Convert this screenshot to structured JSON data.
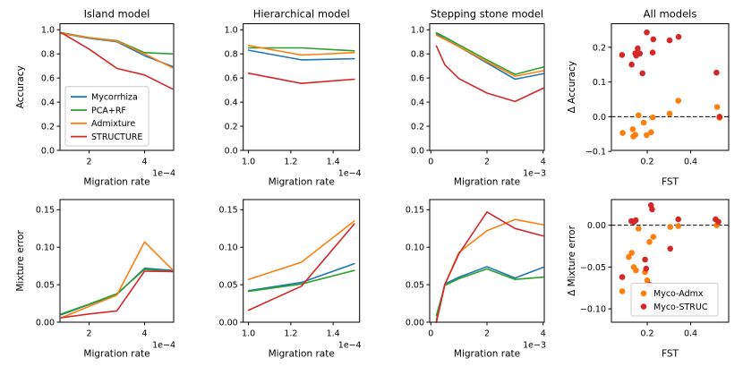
{
  "figure": {
    "background": "#ffffff",
    "row1_titles": [
      "Island model",
      "Hierarchical model",
      "Stepping stone model",
      "All models"
    ],
    "colors": {
      "mycorrhiza_blue": "#1f77b4",
      "pcarf_green": "#2ca02c",
      "admixture_orange": "#ff7f0e",
      "structure_red": "#d62728"
    }
  },
  "chart_data": [
    {
      "id": "island-accuracy",
      "type": "line",
      "title": "Island model",
      "xlabel": "Migration rate",
      "ylabel": "Accuracy",
      "x_offset_label": "1e−4",
      "xlim": [
        0.95,
        5.05
      ],
      "ylim": [
        0,
        1.05
      ],
      "xticks": {
        "values": [
          2,
          4
        ],
        "labels": [
          "2",
          "4"
        ]
      },
      "yticks": {
        "values": [
          0.0,
          0.2,
          0.4,
          0.6,
          0.8,
          1.0
        ],
        "labels": [
          "0.0",
          "0.2",
          "0.4",
          "0.6",
          "0.8",
          "1.0"
        ]
      },
      "x": [
        1,
        2,
        3,
        4,
        5
      ],
      "series": [
        {
          "name": "Mycorrhiza",
          "color": "#1f77b4",
          "y": [
            0.97,
            0.93,
            0.9,
            0.785,
            0.695
          ]
        },
        {
          "name": "PCA+RF",
          "color": "#2ca02c",
          "y": [
            0.975,
            0.935,
            0.91,
            0.81,
            0.8
          ]
        },
        {
          "name": "Admixture",
          "color": "#ff7f0e",
          "y": [
            0.97,
            0.935,
            0.905,
            0.8,
            0.685
          ]
        },
        {
          "name": "STRUCTURE",
          "color": "#d62728",
          "y": [
            0.975,
            0.84,
            0.68,
            0.625,
            0.51
          ]
        }
      ],
      "legend": {
        "show": true,
        "position": "lower-left",
        "marker": "line",
        "width": 93
      }
    },
    {
      "id": "hierarchical-accuracy",
      "type": "line",
      "title": "Hierarchical model",
      "xlabel": "Migration rate",
      "ylabel": "",
      "x_offset_label": "1e−4",
      "xlim": [
        0.975,
        1.525
      ],
      "ylim": [
        0,
        1.05
      ],
      "xticks": {
        "values": [
          1.0,
          1.2,
          1.4
        ],
        "labels": [
          "1.0",
          "1.2",
          "1.4"
        ]
      },
      "yticks": {
        "values": [
          0.0,
          0.2,
          0.4,
          0.6,
          0.8,
          1.0
        ],
        "labels": [
          "0.0",
          "0.2",
          "0.4",
          "0.6",
          "0.8",
          "1.0"
        ]
      },
      "x": [
        1.0,
        1.25,
        1.5
      ],
      "series": [
        {
          "name": "Mycorrhiza",
          "color": "#1f77b4",
          "y": [
            0.83,
            0.75,
            0.76
          ]
        },
        {
          "name": "PCA+RF",
          "color": "#2ca02c",
          "y": [
            0.85,
            0.85,
            0.825
          ]
        },
        {
          "name": "Admixture",
          "color": "#ff7f0e",
          "y": [
            0.87,
            0.79,
            0.81
          ]
        },
        {
          "name": "STRUCTURE",
          "color": "#d62728",
          "y": [
            0.64,
            0.555,
            0.59
          ]
        }
      ],
      "legend": {
        "show": false
      }
    },
    {
      "id": "stepping-stone-accuracy",
      "type": "line",
      "title": "Stepping stone model",
      "xlabel": "Migration rate",
      "ylabel": "",
      "x_offset_label": "1e−3",
      "xlim": [
        -0.04,
        4.04
      ],
      "ylim": [
        0,
        1.05
      ],
      "xticks": {
        "values": [
          0,
          2,
          4
        ],
        "labels": [
          "0",
          "2",
          "4"
        ]
      },
      "yticks": {
        "values": [
          0.0,
          0.2,
          0.4,
          0.6,
          0.8,
          1.0
        ],
        "labels": [
          "0.0",
          "0.2",
          "0.4",
          "0.6",
          "0.8",
          "1.0"
        ]
      },
      "x": [
        0.2,
        0.5,
        1,
        2,
        3,
        4
      ],
      "series": [
        {
          "name": "Mycorrhiza",
          "color": "#1f77b4",
          "y": [
            0.965,
            0.925,
            0.86,
            0.725,
            0.59,
            0.635
          ]
        },
        {
          "name": "PCA+RF",
          "color": "#2ca02c",
          "y": [
            0.975,
            0.94,
            0.875,
            0.75,
            0.63,
            0.69
          ]
        },
        {
          "name": "Admixture",
          "color": "#ff7f0e",
          "y": [
            0.955,
            0.92,
            0.86,
            0.735,
            0.615,
            0.66
          ]
        },
        {
          "name": "STRUCTURE",
          "color": "#d62728",
          "y": [
            0.865,
            0.71,
            0.595,
            0.475,
            0.405,
            0.515
          ]
        }
      ],
      "legend": {
        "show": false
      }
    },
    {
      "id": "all-models-delta-accuracy",
      "type": "scatter",
      "title": "All models",
      "xlabel": "FST",
      "ylabel": "Δ Accuracy",
      "x_offset_label": "",
      "xlim": [
        0.035,
        0.575
      ],
      "ylim": [
        -0.097,
        0.268
      ],
      "xticks": {
        "values": [
          0.2,
          0.4
        ],
        "labels": [
          "0.2",
          "0.4"
        ]
      },
      "yticks": {
        "values": [
          -0.1,
          0.0,
          0.1,
          0.2
        ],
        "labels": [
          "−0.1",
          "0.0",
          "0.1",
          "0.2"
        ]
      },
      "zero_line": true,
      "series": [
        {
          "name": "Myco-Admx",
          "color": "#ff7f0e",
          "points": [
            [
              0.087,
              -0.047
            ],
            [
              0.133,
              -0.036
            ],
            [
              0.136,
              -0.057
            ],
            [
              0.145,
              -0.052
            ],
            [
              0.16,
              0.004
            ],
            [
              0.184,
              -0.017
            ],
            [
              0.197,
              -0.053
            ],
            [
              0.218,
              -0.045
            ],
            [
              0.225,
              -0.002
            ],
            [
              0.303,
              0.009
            ],
            [
              0.343,
              0.046
            ],
            [
              0.522,
              0.028
            ],
            [
              0.533,
              -0.003
            ]
          ]
        },
        {
          "name": "Myco-STRUC",
          "color": "#d62728",
          "points": [
            [
              0.084,
              0.178
            ],
            [
              0.128,
              0.15
            ],
            [
              0.145,
              0.183
            ],
            [
              0.149,
              0.176
            ],
            [
              0.156,
              0.197
            ],
            [
              0.166,
              0.182
            ],
            [
              0.178,
              0.125
            ],
            [
              0.198,
              0.243
            ],
            [
              0.225,
              0.185
            ],
            [
              0.228,
              0.223
            ],
            [
              0.303,
              0.22
            ],
            [
              0.344,
              0.23
            ],
            [
              0.519,
              0.127
            ],
            [
              0.533,
              0.0
            ]
          ]
        }
      ],
      "legend": {
        "show": false
      }
    },
    {
      "id": "island-mixture-error",
      "type": "line",
      "title": "",
      "xlabel": "Migration rate",
      "ylabel": "Mixture error",
      "x_offset_label": "1e−4",
      "xlim": [
        0.95,
        5.05
      ],
      "ylim": [
        0,
        0.1635
      ],
      "xticks": {
        "values": [
          2,
          4
        ],
        "labels": [
          "2",
          "4"
        ]
      },
      "yticks": {
        "values": [
          0.0,
          0.05,
          0.1,
          0.15
        ],
        "labels": [
          "0.00",
          "0.05",
          "0.10",
          "0.15"
        ]
      },
      "x": [
        1,
        2,
        3,
        4,
        5
      ],
      "series": [
        {
          "name": "Mycorrhiza",
          "color": "#1f77b4",
          "y": [
            0.01,
            0.0235,
            0.037,
            0.072,
            0.069
          ]
        },
        {
          "name": "PCA+RF",
          "color": "#2ca02c",
          "y": [
            0.011,
            0.024,
            0.038,
            0.0705,
            0.0675
          ]
        },
        {
          "name": "Admixture",
          "color": "#ff7f0e",
          "y": [
            0.006,
            0.021,
            0.036,
            0.107,
            0.07
          ]
        },
        {
          "name": "STRUCTURE",
          "color": "#d62728",
          "y": [
            0.006,
            0.011,
            0.015,
            0.068,
            0.0675
          ]
        }
      ],
      "legend": {
        "show": false
      }
    },
    {
      "id": "hierarchical-mixture-error",
      "type": "line",
      "title": "",
      "xlabel": "Migration rate",
      "ylabel": "",
      "x_offset_label": "1e−4",
      "xlim": [
        0.975,
        1.525
      ],
      "ylim": [
        0,
        0.1635
      ],
      "xticks": {
        "values": [
          1.0,
          1.2,
          1.4
        ],
        "labels": [
          "1.0",
          "1.2",
          "1.4"
        ]
      },
      "yticks": {
        "values": [
          0.0,
          0.05,
          0.1,
          0.15
        ],
        "labels": [
          "0.00",
          "0.05",
          "0.10",
          "0.15"
        ]
      },
      "x": [
        1.0,
        1.25,
        1.5
      ],
      "series": [
        {
          "name": "Mycorrhiza",
          "color": "#1f77b4",
          "y": [
            0.042,
            0.053,
            0.078
          ]
        },
        {
          "name": "PCA+RF",
          "color": "#2ca02c",
          "y": [
            0.041,
            0.051,
            0.069
          ]
        },
        {
          "name": "Admixture",
          "color": "#ff7f0e",
          "y": [
            0.057,
            0.08,
            0.135
          ]
        },
        {
          "name": "STRUCTURE",
          "color": "#d62728",
          "y": [
            0.016,
            0.048,
            0.131
          ]
        }
      ],
      "legend": {
        "show": false
      }
    },
    {
      "id": "stepping-stone-mixture-error",
      "type": "line",
      "title": "",
      "xlabel": "Migration rate",
      "ylabel": "",
      "x_offset_label": "1e−3",
      "xlim": [
        -0.04,
        4.04
      ],
      "ylim": [
        0,
        0.1635
      ],
      "xticks": {
        "values": [
          0,
          2,
          4
        ],
        "labels": [
          "0",
          "2",
          "4"
        ]
      },
      "yticks": {
        "values": [
          0.0,
          0.05,
          0.1,
          0.15
        ],
        "labels": [
          "0.00",
          "0.05",
          "0.10",
          "0.15"
        ]
      },
      "x": [
        0.2,
        0.5,
        1,
        2,
        3,
        4
      ],
      "series": [
        {
          "name": "Mycorrhiza",
          "color": "#1f77b4",
          "y": [
            0.003,
            0.051,
            0.06,
            0.074,
            0.059,
            0.073
          ]
        },
        {
          "name": "PCA+RF",
          "color": "#2ca02c",
          "y": [
            0.009,
            0.049,
            0.058,
            0.071,
            0.057,
            0.06
          ]
        },
        {
          "name": "Admixture",
          "color": "#ff7f0e",
          "y": [
            0.0,
            0.05,
            0.093,
            0.122,
            0.137,
            0.13
          ]
        },
        {
          "name": "STRUCTURE",
          "color": "#d62728",
          "y": [
            0.0,
            0.05,
            0.091,
            0.147,
            0.125,
            0.115
          ]
        }
      ],
      "legend": {
        "show": false
      }
    },
    {
      "id": "all-models-delta-mixture-error",
      "type": "scatter",
      "title": "",
      "xlabel": "FST",
      "ylabel": "Δ Mixture error",
      "x_offset_label": "",
      "xlim": [
        0.035,
        0.575
      ],
      "ylim": [
        -0.116,
        0.0307
      ],
      "xticks": {
        "values": [
          0.2,
          0.4
        ],
        "labels": [
          "0.2",
          "0.4"
        ]
      },
      "yticks": {
        "values": [
          -0.1,
          -0.05,
          0.0
        ],
        "labels": [
          "−0.10",
          "−0.05",
          "0.00"
        ]
      },
      "zero_line": true,
      "series": [
        {
          "name": "Myco-Admx",
          "color": "#ff7f0e",
          "points": [
            [
              0.085,
              -0.079
            ],
            [
              0.115,
              -0.038
            ],
            [
              0.128,
              -0.033
            ],
            [
              0.138,
              -0.05
            ],
            [
              0.148,
              -0.054
            ],
            [
              0.16,
              -0.004
            ],
            [
              0.19,
              -0.056
            ],
            [
              0.2,
              -0.066
            ],
            [
              0.21,
              -0.02
            ],
            [
              0.228,
              -0.014
            ],
            [
              0.306,
              -0.002
            ],
            [
              0.343,
              -0.001
            ],
            [
              0.52,
              0.0
            ]
          ]
        },
        {
          "name": "Myco-STRUC",
          "color": "#d62728",
          "points": [
            [
              0.085,
              -0.062
            ],
            [
              0.127,
              0.005
            ],
            [
              0.138,
              0.004
            ],
            [
              0.147,
              0.006
            ],
            [
              0.19,
              -0.041
            ],
            [
              0.195,
              -0.052
            ],
            [
              0.21,
              -0.071
            ],
            [
              0.217,
              0.024
            ],
            [
              0.222,
              0.019
            ],
            [
              0.306,
              -0.028
            ],
            [
              0.343,
              0.007
            ],
            [
              0.515,
              0.007
            ],
            [
              0.528,
              0.004
            ]
          ]
        }
      ],
      "legend": {
        "show": true,
        "position": "lower-right",
        "marker": "dot",
        "width": 97
      }
    }
  ]
}
